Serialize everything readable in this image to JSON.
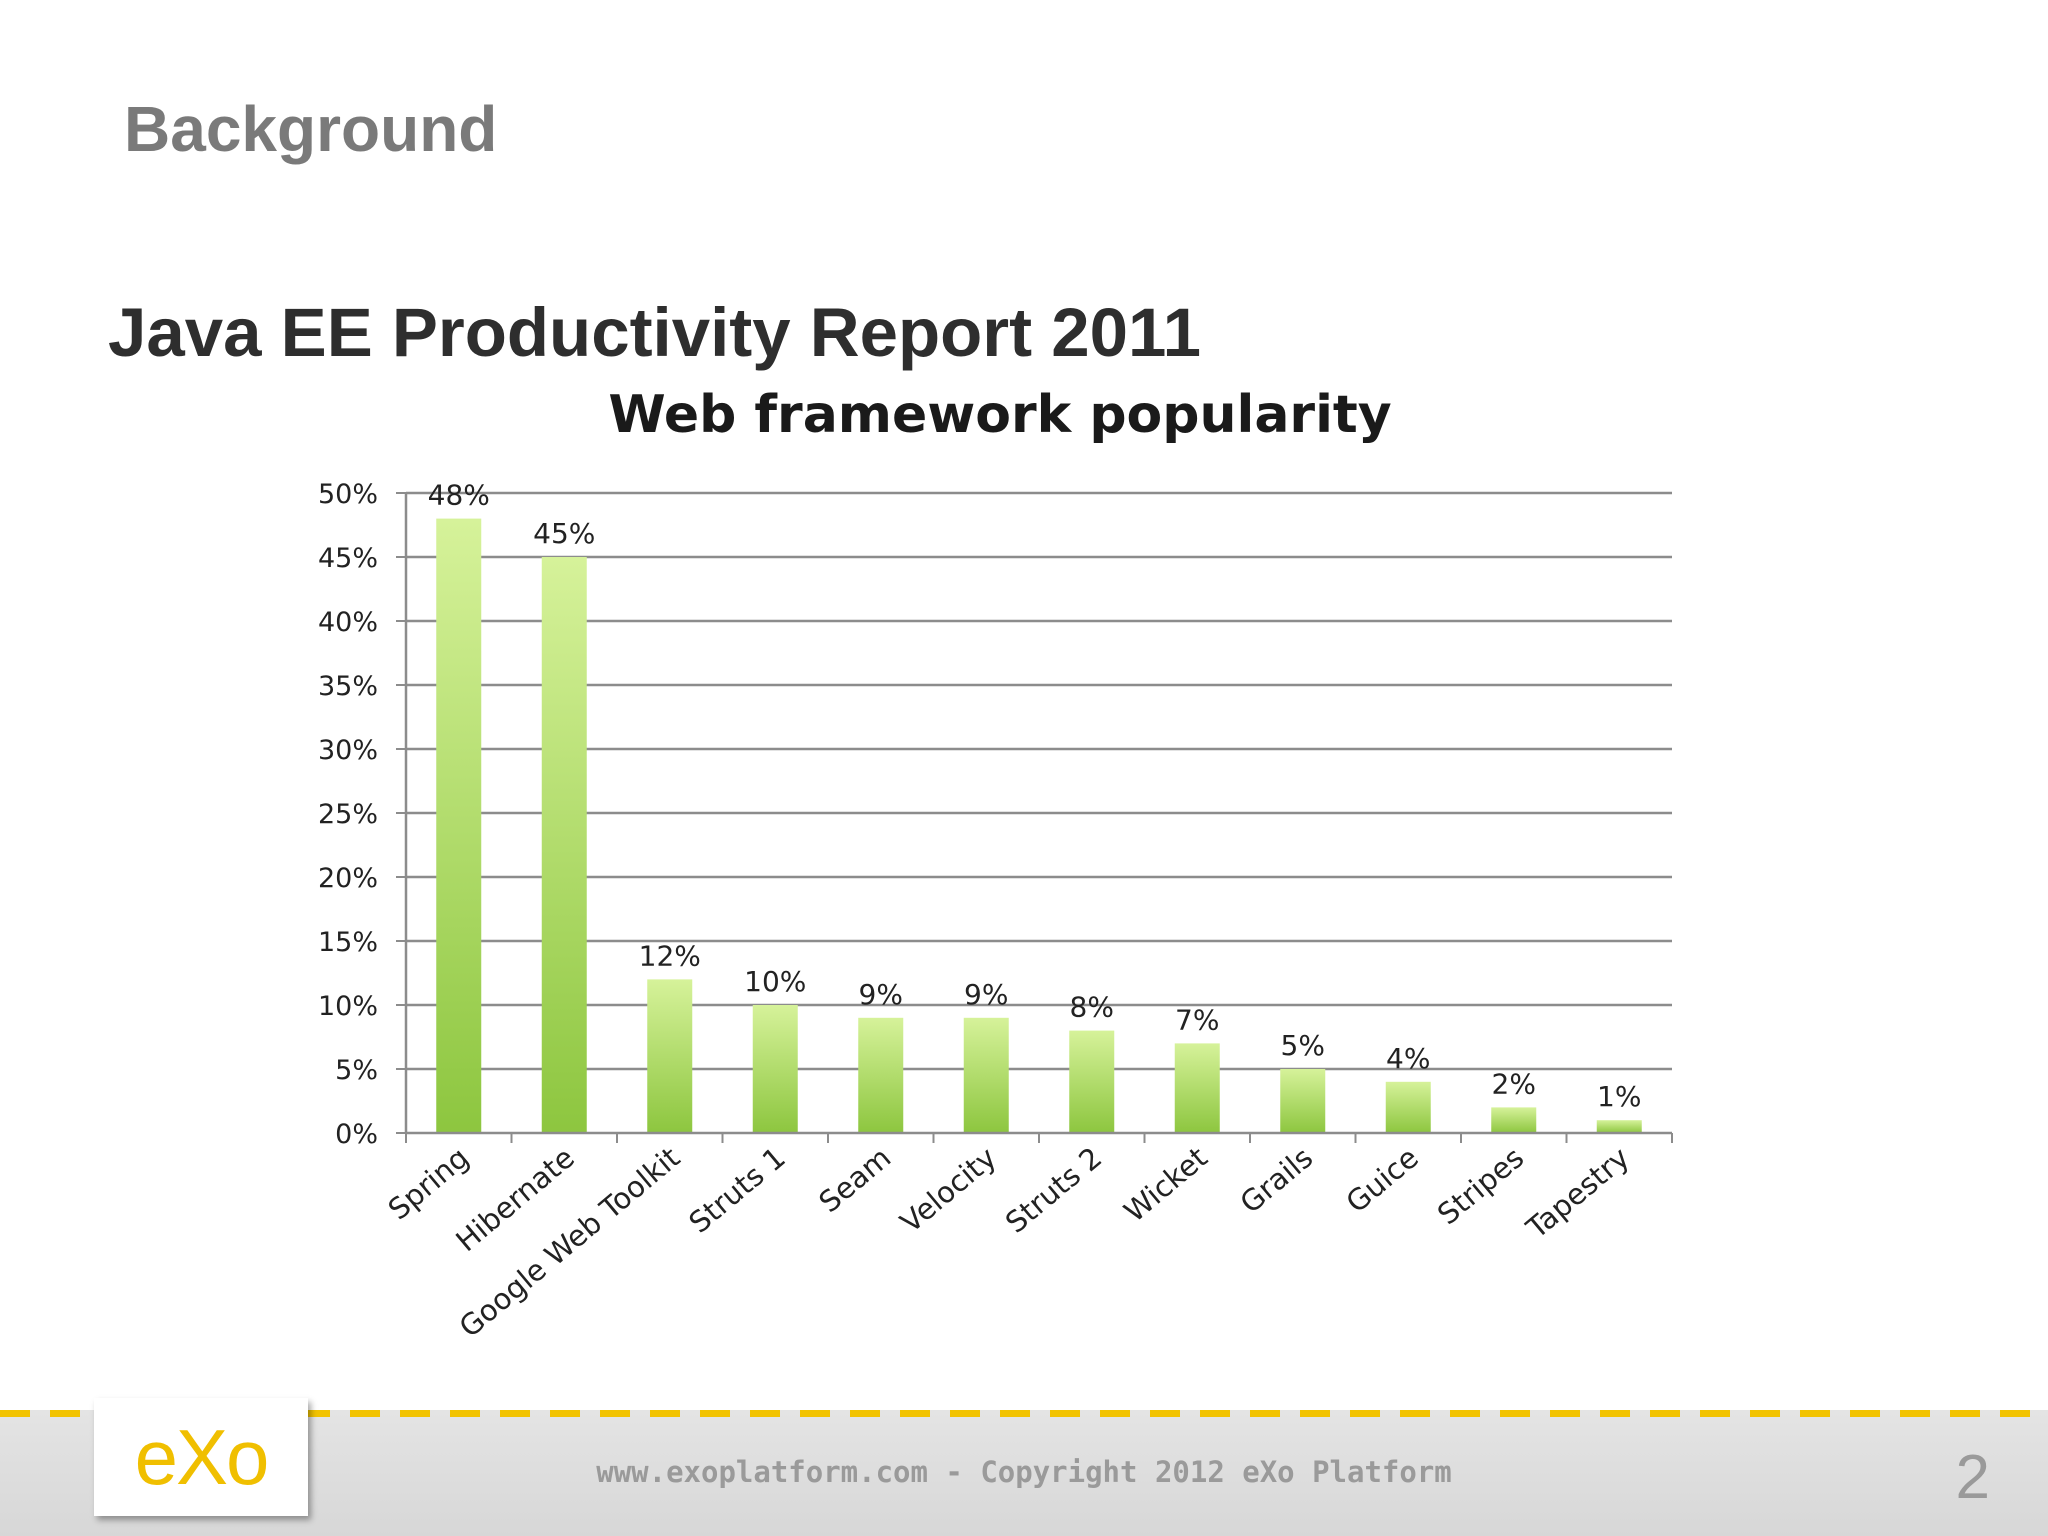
{
  "slide": {
    "heading": "Background",
    "report_title": "Java EE Productivity Report 2011",
    "footer_text": "www.exoplatform.com - Copyright 2012 eXo Platform",
    "page_number": "2",
    "logo_text": "eXo"
  },
  "colors": {
    "bar_top": "#d6f29a",
    "bar_bottom": "#8dc63f",
    "accent": "#f2c300"
  },
  "chart_data": {
    "type": "bar",
    "title": "Web framework popularity",
    "categories": [
      "Spring",
      "Hibernate",
      "Google Web Toolkit",
      "Struts 1",
      "Seam",
      "Velocity",
      "Struts 2",
      "Wicket",
      "Grails",
      "Guice",
      "Stripes",
      "Tapestry"
    ],
    "values": [
      48,
      45,
      12,
      10,
      9,
      9,
      8,
      7,
      5,
      4,
      2,
      1
    ],
    "data_labels": [
      "48%",
      "45%",
      "12%",
      "10%",
      "9%",
      "9%",
      "8%",
      "7%",
      "5%",
      "4%",
      "2%",
      "1%"
    ],
    "yticks": [
      "0%",
      "5%",
      "10%",
      "15%",
      "20%",
      "25%",
      "30%",
      "35%",
      "40%",
      "45%",
      "50%"
    ],
    "ylim": [
      0,
      50
    ],
    "xlabel": "",
    "ylabel": "",
    "grid": true,
    "legend": "none"
  }
}
